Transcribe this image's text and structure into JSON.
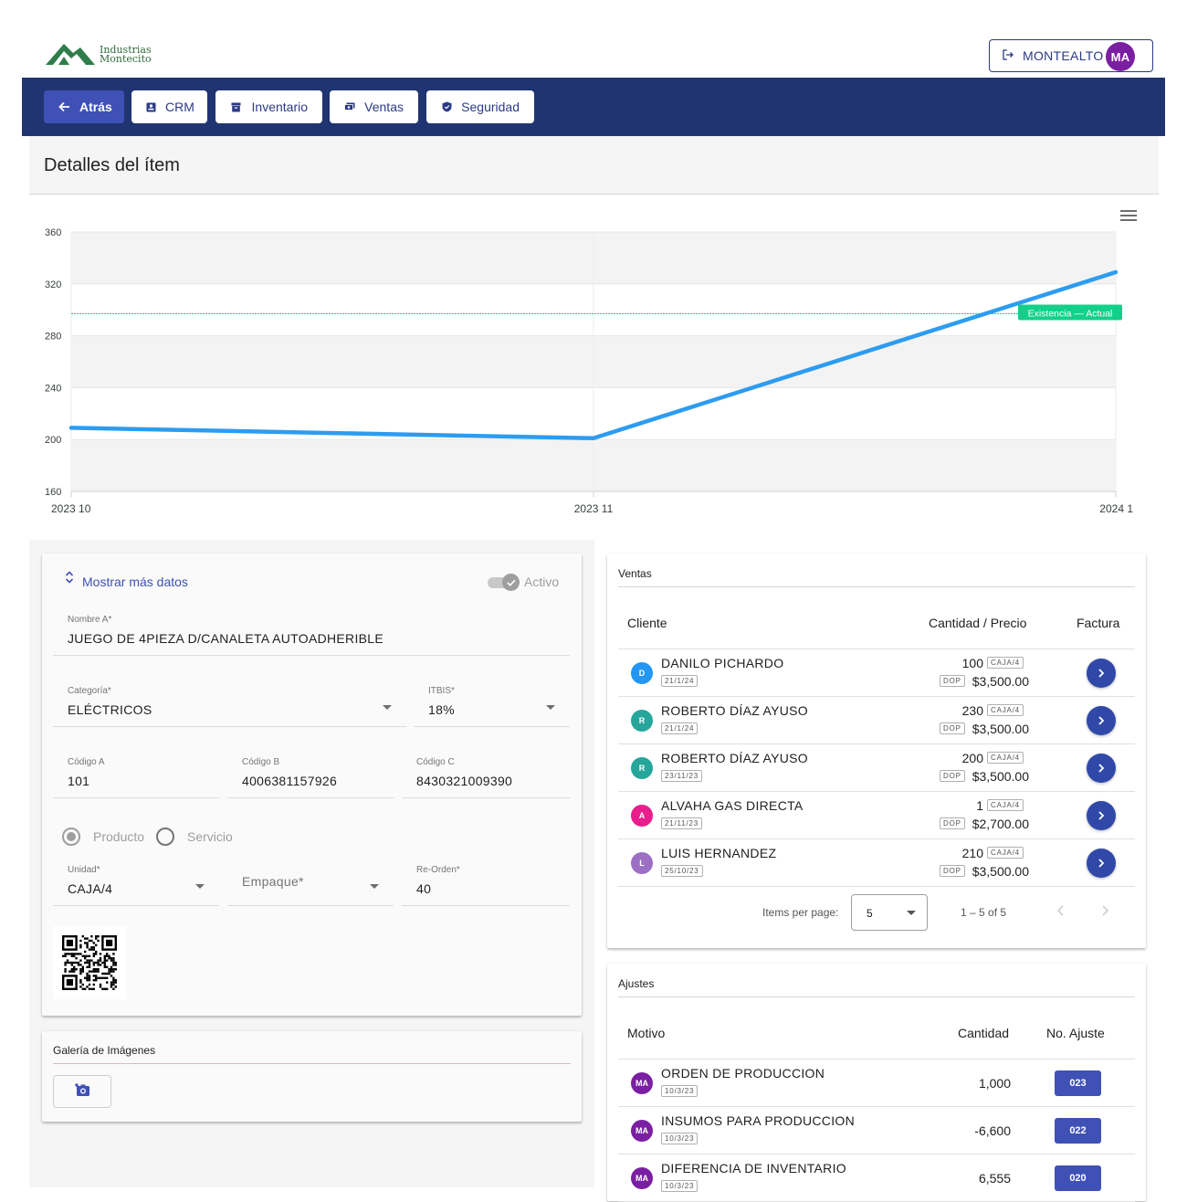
{
  "header": {
    "logo_line1": "Industrias",
    "logo_line2": "Montecito",
    "user_label": "MONTEALTO",
    "user_initials": "MA"
  },
  "nav": {
    "back": "Atrás",
    "crm": "CRM",
    "inventario": "Inventario",
    "ventas": "Ventas",
    "seguridad": "Seguridad"
  },
  "page_title": "Detalles del ítem",
  "colors": {
    "primary": "#3f51b5",
    "navbar": "#213472",
    "series": "#2d9cf0",
    "reference": "#1fcf8c"
  },
  "chart_data": {
    "type": "line",
    "x": [
      "2023 10",
      "2023 11",
      "2024 1"
    ],
    "series": [
      {
        "values": [
          209,
          201,
          329
        ]
      }
    ],
    "reference_line": {
      "value": 297,
      "label": "Existencia — Actual"
    },
    "ylim": [
      160,
      360
    ],
    "yticks": [
      160,
      200,
      240,
      280,
      320,
      360
    ],
    "grid": true,
    "title": "",
    "xlabel": "",
    "ylabel": ""
  },
  "form": {
    "toggle_more": "Mostrar más datos",
    "active_label": "Activo",
    "nombre_label": "Nombre A*",
    "nombre_value": "JUEGO DE 4PIEZA D/CANALETA AUTOADHERIBLE",
    "categoria_label": "Categoría*",
    "categoria_value": "ELÉCTRICOS",
    "itbis_label": "ITBIS*",
    "itbis_value": "18%",
    "codigo_a_label": "Código A",
    "codigo_a_value": "101",
    "codigo_b_label": "Código B",
    "codigo_b_value": "4006381157926",
    "codigo_c_label": "Código C",
    "codigo_c_value": "8430321009390",
    "radio_producto": "Producto",
    "radio_servicio": "Servicio",
    "unidad_label": "Unidad*",
    "unidad_value": "CAJA/4",
    "empaque_placeholder": "Empaque*",
    "reorden_label": "Re-Orden*",
    "reorden_value": "40"
  },
  "gallery": {
    "title": "Galería de Imágenes"
  },
  "ventas": {
    "title": "Ventas",
    "col_cliente": "Cliente",
    "col_cantidad": "Cantidad / Precio",
    "col_factura": "Factura",
    "rows": [
      {
        "initial": "D",
        "color": "#2196f3",
        "name": "DANILO PICHARDO",
        "date": "21/1/24",
        "qty": "100",
        "unit": "CAJA/4",
        "currency": "DOP",
        "price": "$3,500.00"
      },
      {
        "initial": "R",
        "color": "#26a69a",
        "name": "ROBERTO DÍAZ AYUSO",
        "date": "21/1/24",
        "qty": "230",
        "unit": "CAJA/4",
        "currency": "DOP",
        "price": "$3,500.00"
      },
      {
        "initial": "R",
        "color": "#26a69a",
        "name": "ROBERTO DÍAZ AYUSO",
        "date": "23/11/23",
        "qty": "200",
        "unit": "CAJA/4",
        "currency": "DOP",
        "price": "$3,500.00"
      },
      {
        "initial": "A",
        "color": "#e91e8c",
        "name": "ALVAHA GAS DIRECTA",
        "date": "21/11/23",
        "qty": "1",
        "unit": "CAJA/4",
        "currency": "DOP",
        "price": "$2,700.00"
      },
      {
        "initial": "L",
        "color": "#9c6fc4",
        "name": "LUIS HERNANDEZ",
        "date": "25/10/23",
        "qty": "210",
        "unit": "CAJA/4",
        "currency": "DOP",
        "price": "$3,500.00"
      }
    ],
    "items_per_page_label": "Items per page:",
    "items_per_page_value": "5",
    "range_label": "1 – 5 of 5"
  },
  "ajustes": {
    "title": "Ajustes",
    "col_motivo": "Motivo",
    "col_cantidad": "Cantidad",
    "col_no": "No. Ajuste",
    "rows": [
      {
        "initials": "MA",
        "motivo": "ORDEN DE PRODUCCION",
        "date": "10/3/23",
        "cantidad": "1,000",
        "no": "023"
      },
      {
        "initials": "MA",
        "motivo": "INSUMOS PARA PRODUCCION",
        "date": "10/3/23",
        "cantidad": "-6,600",
        "no": "022"
      },
      {
        "initials": "MA",
        "motivo": "DIFERENCIA DE INVENTARIO",
        "date": "10/3/23",
        "cantidad": "6,555",
        "no": "020"
      }
    ]
  }
}
